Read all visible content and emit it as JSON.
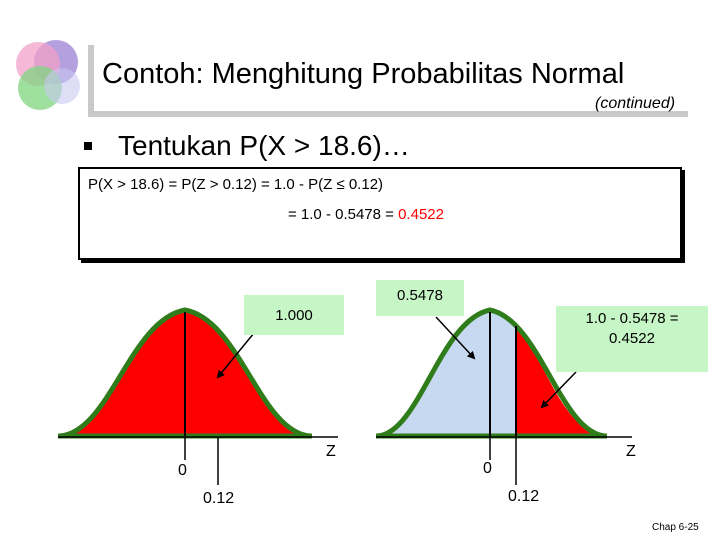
{
  "slide": {
    "title": "Contoh: Menghitung Probabilitas Normal",
    "continued": "(continued)",
    "bullet": "Tentukan P(X > 18.6)…",
    "calc": {
      "line1": "P(X > 18.6) = P(Z > 0.12) = 1.0 - P(Z ≤ 0.12)",
      "line2": "= 1.0 - 0.5478 = ",
      "result": "0.4522"
    },
    "left_plot": {
      "callout": "1.000",
      "axis_label": "Z",
      "mean_label": "0",
      "z_label": "0.12"
    },
    "right_plot": {
      "callout_left": "0.5478",
      "callout_right_line1": "1.0 - 0.5478 =",
      "callout_right_line2": "0.4522",
      "axis_label": "Z",
      "mean_label": "0",
      "z_label": "0.12"
    },
    "footer": "Chap 6-25"
  },
  "colors": {
    "curve_outline": "#2e7d1a",
    "shaded_area": "#ff0000",
    "unshaded_area": "#c6d9f1",
    "callout_fill": "#c6f5c6",
    "result_text": "#ff0000"
  }
}
